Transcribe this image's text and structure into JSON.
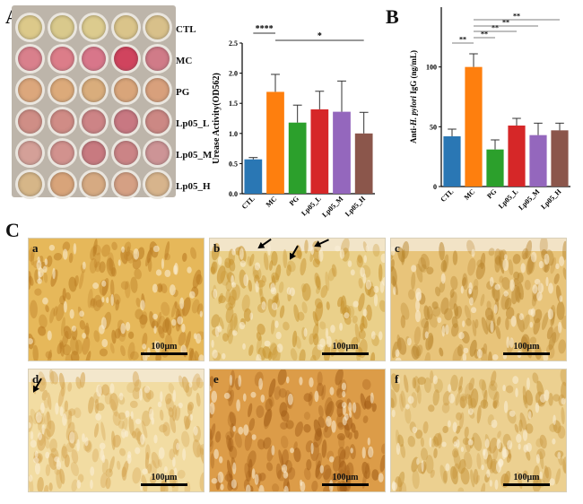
{
  "panels": {
    "a": "A",
    "b": "B",
    "c": "C"
  },
  "plate": {
    "rows": [
      {
        "label": "CTL",
        "colors": [
          "#dcc98a",
          "#d9c98c",
          "#dccb8e",
          "#dac48a",
          "#d8c08a"
        ]
      },
      {
        "label": "MC",
        "colors": [
          "#d9808c",
          "#dc7d89",
          "#d8768a",
          "#d0445e",
          "#d07b88"
        ]
      },
      {
        "label": "PG",
        "colors": [
          "#dca77c",
          "#dcaa7a",
          "#d9ad7c",
          "#d9a57a",
          "#d8a07c"
        ]
      },
      {
        "label": "Lp05_L",
        "colors": [
          "#cf8e86",
          "#d08c86",
          "#cd8486",
          "#c87882",
          "#cc8884"
        ]
      },
      {
        "label": "Lp05_M",
        "colors": [
          "#d4a098",
          "#d2928e",
          "#c87a80",
          "#cb8486",
          "#cd9496"
        ]
      },
      {
        "label": "Lp05_H",
        "colors": [
          "#d6b688",
          "#d8a47a",
          "#d6aa82",
          "#d5a084",
          "#d7b48c"
        ]
      }
    ]
  },
  "chart_data": [
    {
      "type": "bar",
      "categories": [
        "CTL",
        "MC",
        "PG",
        "Lp05_L",
        "Lp05_M",
        "Lp05_H"
      ],
      "values": [
        0.57,
        1.69,
        1.18,
        1.4,
        1.36,
        1.0
      ],
      "errors": [
        0.03,
        0.29,
        0.29,
        0.3,
        0.51,
        0.35
      ],
      "colors": [
        "#2a77b4",
        "#fe7f0e",
        "#2ca02c",
        "#d62728",
        "#9467bd",
        "#8b564b"
      ],
      "ylabel": "Urease  Activity(OD562)",
      "yticks": [
        "0.0",
        "0.5",
        "1.0",
        "1.5",
        "2.0",
        "2.5"
      ],
      "ylim": [
        0,
        2.5
      ],
      "significance": [
        {
          "from": "CTL",
          "to": "MC",
          "label": "****"
        },
        {
          "from": "MC",
          "to": "Lp05_H",
          "label": "*"
        }
      ]
    },
    {
      "type": "bar",
      "categories": [
        "CTL",
        "MC",
        "PG",
        "Lp05_L",
        "Lp05_M",
        "Lp05_H"
      ],
      "values": [
        42,
        100,
        31,
        51,
        43,
        47
      ],
      "errors": [
        6,
        11,
        8,
        6,
        10,
        6
      ],
      "colors": [
        "#2a77b4",
        "#fe7f0e",
        "#2ca02c",
        "#d62728",
        "#9467bd",
        "#8b564b"
      ],
      "ylabel_parts": [
        "Anti-",
        "H. pylori",
        " IgG (ng/mL)"
      ],
      "yticks": [
        "0",
        "50",
        "100"
      ],
      "ylim": [
        0,
        150
      ],
      "significance": [
        {
          "from": "CTL",
          "to": "MC",
          "label": "**"
        },
        {
          "from": "MC",
          "to": "PG",
          "label": "**"
        },
        {
          "from": "MC",
          "to": "Lp05_L",
          "label": "**"
        },
        {
          "from": "MC",
          "to": "Lp05_M",
          "label": "**"
        },
        {
          "from": "MC",
          "to": "Lp05_H",
          "label": "**"
        }
      ]
    }
  ],
  "micrographs": [
    {
      "letter": "a",
      "scale": "100μm",
      "base": "#e6b85a",
      "cell": "#b97a22",
      "arrows": 0
    },
    {
      "letter": "b",
      "scale": "100μm",
      "base": "#ead08a",
      "cell": "#c7922e",
      "arrows": 3
    },
    {
      "letter": "c",
      "scale": "100μm",
      "base": "#e8c47a",
      "cell": "#b8842c",
      "arrows": 0
    },
    {
      "letter": "d",
      "scale": "100μm",
      "base": "#f2dca2",
      "cell": "#d5a552",
      "arrows": 1
    },
    {
      "letter": "e",
      "scale": "100μm",
      "base": "#dc9c48",
      "cell": "#a35e18",
      "arrows": 0
    },
    {
      "letter": "f",
      "scale": "100μm",
      "base": "#ecd090",
      "cell": "#c6943a",
      "arrows": 0
    }
  ]
}
